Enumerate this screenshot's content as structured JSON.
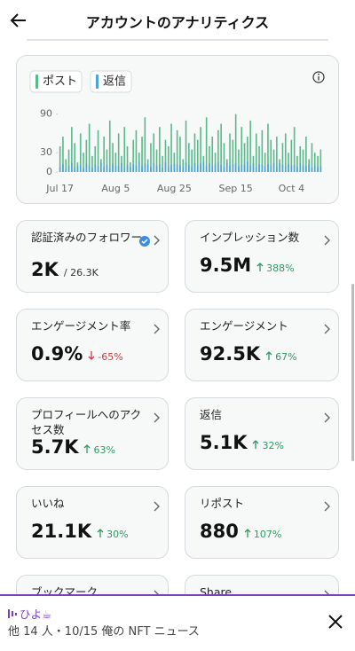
{
  "header": {
    "title": "アカウントのアナリティクス"
  },
  "chart_data": {
    "type": "bar",
    "series": [
      {
        "name": "ポスト",
        "color": "#59b98a",
        "values": [
          40,
          55,
          20,
          35,
          70,
          45,
          15,
          60,
          30,
          50,
          75,
          25,
          40,
          65,
          20,
          55,
          35,
          80,
          45,
          30,
          60,
          25,
          70,
          40,
          15,
          50,
          65,
          30,
          55,
          85,
          20,
          45,
          60,
          35,
          70,
          25,
          50,
          40,
          75,
          30,
          65,
          55,
          20,
          80,
          45,
          35,
          60,
          50,
          70,
          25,
          85,
          40,
          55,
          30,
          65,
          75,
          45,
          20,
          60,
          50,
          90,
          35,
          70,
          45,
          55,
          80,
          25,
          60,
          40,
          65,
          30,
          75,
          50,
          35,
          55,
          20,
          45,
          60,
          30,
          50,
          70,
          25,
          40,
          35,
          55,
          20,
          45,
          30,
          25,
          35
        ]
      },
      {
        "name": "返信",
        "color": "#4aa3d8",
        "values": [
          8,
          12,
          5,
          10,
          14,
          7,
          9,
          11,
          6,
          13,
          10,
          7,
          12,
          9,
          15,
          8,
          11,
          6,
          13,
          10,
          9,
          14,
          7,
          11,
          8,
          12,
          10,
          16,
          9,
          13,
          11,
          8,
          14,
          10,
          12,
          7,
          15,
          9,
          11,
          13,
          12,
          10,
          8,
          15,
          11,
          9,
          14,
          10,
          13,
          16,
          10,
          13,
          9,
          12,
          15,
          11,
          8,
          14,
          10,
          12,
          14,
          9,
          12,
          11,
          16,
          10,
          13,
          8,
          12,
          11,
          9,
          12,
          10,
          14,
          8,
          13,
          11,
          9,
          12,
          10,
          11,
          8,
          13,
          10,
          9,
          12,
          7,
          10,
          8,
          9
        ]
      }
    ],
    "categories": [
      "Jul 17",
      null,
      null,
      null,
      null,
      null,
      null,
      null,
      null,
      null,
      null,
      null,
      null,
      null,
      null,
      null,
      null,
      null,
      null,
      "Aug 5",
      null,
      null,
      null,
      null,
      null,
      null,
      null,
      null,
      null,
      null,
      null,
      null,
      null,
      null,
      null,
      null,
      null,
      null,
      null,
      "Aug 25",
      null,
      null,
      null,
      null,
      null,
      null,
      null,
      null,
      null,
      null,
      null,
      null,
      null,
      null,
      null,
      null,
      null,
      null,
      null,
      null,
      "Sep 15",
      null,
      null,
      null,
      null,
      null,
      null,
      null,
      null,
      null,
      null,
      null,
      null,
      null,
      null,
      null,
      null,
      null,
      null,
      "Oct 4",
      null,
      null,
      null,
      null,
      null,
      null,
      null,
      null,
      null,
      null
    ],
    "ylim": [
      0,
      95
    ],
    "yticks": [
      0,
      30,
      90
    ]
  },
  "metrics": [
    {
      "label": "認証済みのフォロワー",
      "value": "2K",
      "total": "/ 26.3K",
      "verified": true
    },
    {
      "label": "インプレッション数",
      "value": "9.5M",
      "change": "388%",
      "trend": "up"
    },
    {
      "label": "エンゲージメント率",
      "value": "0.9%",
      "change": "-65%",
      "trend": "down"
    },
    {
      "label": "エンゲージメント",
      "value": "92.5K",
      "change": "67%",
      "trend": "up"
    },
    {
      "label": "プロフィールへのアクセス数",
      "value": "5.7K",
      "change": "63%",
      "trend": "up"
    },
    {
      "label": "返信",
      "value": "5.1K",
      "change": "32%",
      "trend": "up"
    },
    {
      "label": "いいね",
      "value": "21.1K",
      "change": "30%",
      "trend": "up"
    },
    {
      "label": "リポスト",
      "value": "880",
      "change": "107%",
      "trend": "up"
    },
    {
      "label": "ブックマーク"
    },
    {
      "label": "Share"
    }
  ],
  "notification": {
    "name": "ひよ☕",
    "text": "他 14 人・10/15 俺の NFT ニュース"
  }
}
